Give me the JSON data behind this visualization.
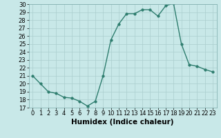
{
  "x": [
    0,
    1,
    2,
    3,
    4,
    5,
    6,
    7,
    8,
    9,
    10,
    11,
    12,
    13,
    14,
    15,
    16,
    17,
    18,
    19,
    20,
    21,
    22,
    23
  ],
  "y": [
    21,
    20,
    19,
    18.8,
    18.3,
    18.2,
    17.8,
    17.2,
    17.8,
    21,
    25.5,
    27.5,
    28.8,
    28.8,
    29.3,
    29.3,
    28.5,
    29.8,
    30.1,
    25,
    22.4,
    22.2,
    21.8,
    21.5
  ],
  "line_color": "#2e7d6e",
  "marker_color": "#2e7d6e",
  "bg_color": "#c8e8e8",
  "grid_color": "#aacece",
  "xlabel": "Humidex (Indice chaleur)",
  "ylim": [
    17,
    30
  ],
  "xlim": [
    -0.5,
    23.5
  ],
  "yticks": [
    17,
    18,
    19,
    20,
    21,
    22,
    23,
    24,
    25,
    26,
    27,
    28,
    29,
    30
  ],
  "xticks": [
    0,
    1,
    2,
    3,
    4,
    5,
    6,
    7,
    8,
    9,
    10,
    11,
    12,
    13,
    14,
    15,
    16,
    17,
    18,
    19,
    20,
    21,
    22,
    23
  ],
  "xlabel_fontsize": 7.5,
  "tick_fontsize": 6,
  "line_width": 1.0,
  "marker_size": 2.5
}
